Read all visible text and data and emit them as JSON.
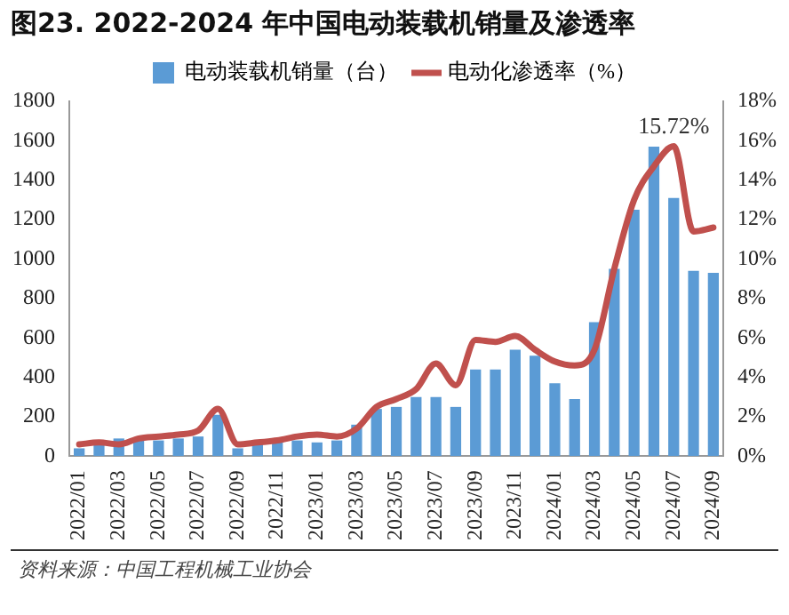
{
  "chart_data": {
    "type": "bar",
    "title": "图23. 2022-2024 年中国电动装载机销量及渗透率",
    "categories": [
      "2022/01",
      null,
      "2022/03",
      null,
      "2022/05",
      null,
      "2022/07",
      null,
      "2022/09",
      null,
      "2022/11",
      null,
      "2023/01",
      null,
      "2023/03",
      null,
      "2023/05",
      null,
      "2023/07",
      null,
      "2023/09",
      null,
      "2023/11",
      null,
      "2024/01",
      null,
      "2024/03",
      null,
      "2024/05",
      null,
      "2024/07",
      null,
      "2024/09"
    ],
    "series": [
      {
        "name": "电动装载机销量（台）",
        "color": "#5b9bd5",
        "values": [
          40,
          70,
          90,
          80,
          80,
          90,
          100,
          210,
          40,
          60,
          90,
          80,
          70,
          80,
          160,
          240,
          250,
          300,
          300,
          250,
          440,
          440,
          540,
          510,
          370,
          290,
          680,
          950,
          1250,
          1570,
          1310,
          940,
          930
        ]
      },
      {
        "name": "电动化渗透率（%）",
        "type": "line",
        "axis": "y2",
        "color": "#c0504d",
        "values": [
          0.6,
          0.7,
          0.6,
          0.9,
          1,
          1.1,
          1.3,
          2.4,
          0.6,
          0.7,
          0.8,
          1,
          1.1,
          1,
          1.4,
          2.5,
          2.9,
          3.4,
          4.7,
          3.6,
          5.9,
          5.8,
          6.1,
          5.4,
          4.8,
          4.6,
          5.4,
          9.5,
          13,
          14.7,
          15.72,
          11.4,
          11.6
        ],
        "value_labels": [
          null,
          null,
          null,
          null,
          null,
          null,
          null,
          null,
          null,
          null,
          null,
          null,
          null,
          null,
          null,
          null,
          null,
          null,
          null,
          null,
          null,
          null,
          null,
          null,
          null,
          null,
          null,
          null,
          null,
          null,
          "15.72%",
          null,
          null
        ]
      }
    ],
    "ylim": [
      0,
      1800
    ],
    "yticks": [
      0,
      200,
      400,
      600,
      800,
      1000,
      1200,
      1400,
      1600,
      1800
    ],
    "y2lim": [
      0,
      18
    ],
    "y2ticks": [
      {
        "value": 0,
        "label": "0%"
      },
      {
        "value": 2,
        "label": "2%"
      },
      {
        "value": 4,
        "label": "4%"
      },
      {
        "value": 6,
        "label": "6%"
      },
      {
        "value": 8,
        "label": "8%"
      },
      {
        "value": 10,
        "label": "10%"
      },
      {
        "value": 12,
        "label": "12%"
      },
      {
        "value": 14,
        "label": "14%"
      },
      {
        "value": 16,
        "label": "16%"
      },
      {
        "value": 18,
        "label": "18%"
      }
    ],
    "grid": false,
    "legend": "top",
    "marker": "none",
    "line_style": "solid",
    "annotations": [
      "资料来源：中国工程机械工业协会"
    ]
  }
}
